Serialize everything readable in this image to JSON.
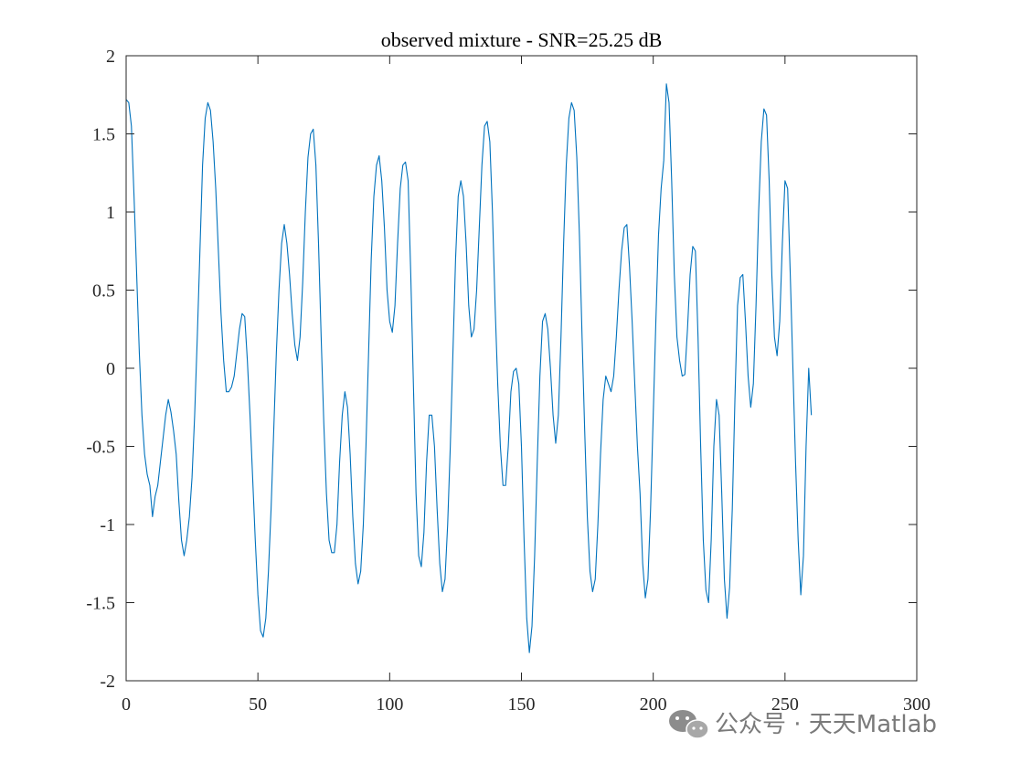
{
  "chart_data": {
    "type": "line",
    "title": "observed mixture - SNR=25.25 dB",
    "xlabel": "",
    "ylabel": "",
    "xlim": [
      0,
      300
    ],
    "ylim": [
      -2,
      2
    ],
    "xticks": [
      0,
      50,
      100,
      150,
      200,
      250,
      300
    ],
    "xtick_labels": [
      "0",
      "50",
      "100",
      "150",
      "200",
      "250",
      "300"
    ],
    "yticks": [
      -2,
      -1.5,
      -1,
      -0.5,
      0,
      0.5,
      1,
      1.5,
      2
    ],
    "ytick_labels": [
      "-2",
      "-1.5",
      "-1",
      "-0.5",
      "0",
      "0.5",
      "1",
      "1.5",
      "2"
    ],
    "grid": false,
    "line_color": "#0072BD",
    "series": [
      {
        "points": [
          [
            0,
            1.72
          ],
          [
            1,
            1.7
          ],
          [
            2,
            1.55
          ],
          [
            3,
            1.1
          ],
          [
            4,
            0.6
          ],
          [
            5,
            0.1
          ],
          [
            6,
            -0.3
          ],
          [
            7,
            -0.55
          ],
          [
            8,
            -0.68
          ],
          [
            9,
            -0.75
          ],
          [
            10,
            -0.95
          ],
          [
            11,
            -0.82
          ],
          [
            12,
            -0.75
          ],
          [
            13,
            -0.6
          ],
          [
            14,
            -0.45
          ],
          [
            15,
            -0.3
          ],
          [
            16,
            -0.2
          ],
          [
            17,
            -0.28
          ],
          [
            18,
            -0.4
          ],
          [
            19,
            -0.55
          ],
          [
            20,
            -0.85
          ],
          [
            21,
            -1.1
          ],
          [
            22,
            -1.2
          ],
          [
            23,
            -1.1
          ],
          [
            24,
            -0.95
          ],
          [
            25,
            -0.7
          ],
          [
            26,
            -0.3
          ],
          [
            27,
            0.2
          ],
          [
            28,
            0.75
          ],
          [
            29,
            1.3
          ],
          [
            30,
            1.6
          ],
          [
            31,
            1.7
          ],
          [
            32,
            1.65
          ],
          [
            33,
            1.45
          ],
          [
            34,
            1.15
          ],
          [
            35,
            0.75
          ],
          [
            36,
            0.35
          ],
          [
            37,
            0.05
          ],
          [
            38,
            -0.15
          ],
          [
            39,
            -0.15
          ],
          [
            40,
            -0.12
          ],
          [
            41,
            -0.05
          ],
          [
            42,
            0.1
          ],
          [
            43,
            0.25
          ],
          [
            44,
            0.35
          ],
          [
            45,
            0.33
          ],
          [
            46,
            0.05
          ],
          [
            47,
            -0.3
          ],
          [
            48,
            -0.7
          ],
          [
            49,
            -1.1
          ],
          [
            50,
            -1.45
          ],
          [
            51,
            -1.68
          ],
          [
            52,
            -1.72
          ],
          [
            53,
            -1.6
          ],
          [
            54,
            -1.3
          ],
          [
            55,
            -0.9
          ],
          [
            56,
            -0.4
          ],
          [
            57,
            0.1
          ],
          [
            58,
            0.5
          ],
          [
            59,
            0.8
          ],
          [
            60,
            0.92
          ],
          [
            61,
            0.8
          ],
          [
            62,
            0.6
          ],
          [
            63,
            0.35
          ],
          [
            64,
            0.15
          ],
          [
            65,
            0.05
          ],
          [
            66,
            0.2
          ],
          [
            67,
            0.55
          ],
          [
            68,
            1.0
          ],
          [
            69,
            1.35
          ],
          [
            70,
            1.5
          ],
          [
            71,
            1.53
          ],
          [
            72,
            1.3
          ],
          [
            73,
            0.8
          ],
          [
            74,
            0.2
          ],
          [
            75,
            -0.35
          ],
          [
            76,
            -0.8
          ],
          [
            77,
            -1.1
          ],
          [
            78,
            -1.18
          ],
          [
            79,
            -1.18
          ],
          [
            80,
            -1.0
          ],
          [
            81,
            -0.6
          ],
          [
            82,
            -0.3
          ],
          [
            83,
            -0.15
          ],
          [
            84,
            -0.25
          ],
          [
            85,
            -0.55
          ],
          [
            86,
            -0.95
          ],
          [
            87,
            -1.25
          ],
          [
            88,
            -1.38
          ],
          [
            89,
            -1.3
          ],
          [
            90,
            -1.0
          ],
          [
            91,
            -0.5
          ],
          [
            92,
            0.1
          ],
          [
            93,
            0.7
          ],
          [
            94,
            1.1
          ],
          [
            95,
            1.3
          ],
          [
            96,
            1.36
          ],
          [
            97,
            1.2
          ],
          [
            98,
            0.9
          ],
          [
            99,
            0.5
          ],
          [
            100,
            0.3
          ],
          [
            101,
            0.23
          ],
          [
            102,
            0.4
          ],
          [
            103,
            0.8
          ],
          [
            104,
            1.15
          ],
          [
            105,
            1.3
          ],
          [
            106,
            1.32
          ],
          [
            107,
            1.2
          ],
          [
            108,
            0.6
          ],
          [
            109,
            -0.1
          ],
          [
            110,
            -0.8
          ],
          [
            111,
            -1.2
          ],
          [
            112,
            -1.27
          ],
          [
            113,
            -1.05
          ],
          [
            114,
            -0.6
          ],
          [
            115,
            -0.3
          ],
          [
            116,
            -0.3
          ],
          [
            117,
            -0.5
          ],
          [
            118,
            -0.9
          ],
          [
            119,
            -1.25
          ],
          [
            120,
            -1.43
          ],
          [
            121,
            -1.35
          ],
          [
            122,
            -1.0
          ],
          [
            123,
            -0.5
          ],
          [
            124,
            0.1
          ],
          [
            125,
            0.7
          ],
          [
            126,
            1.1
          ],
          [
            127,
            1.2
          ],
          [
            128,
            1.1
          ],
          [
            129,
            0.8
          ],
          [
            130,
            0.4
          ],
          [
            131,
            0.2
          ],
          [
            132,
            0.25
          ],
          [
            133,
            0.5
          ],
          [
            134,
            0.9
          ],
          [
            135,
            1.3
          ],
          [
            136,
            1.55
          ],
          [
            137,
            1.58
          ],
          [
            138,
            1.45
          ],
          [
            139,
            1.0
          ],
          [
            140,
            0.4
          ],
          [
            141,
            -0.1
          ],
          [
            142,
            -0.5
          ],
          [
            143,
            -0.75
          ],
          [
            144,
            -0.75
          ],
          [
            145,
            -0.5
          ],
          [
            146,
            -0.15
          ],
          [
            147,
            -0.02
          ],
          [
            148,
            0.0
          ],
          [
            149,
            -0.1
          ],
          [
            150,
            -0.5
          ],
          [
            151,
            -1.1
          ],
          [
            152,
            -1.6
          ],
          [
            153,
            -1.82
          ],
          [
            154,
            -1.65
          ],
          [
            155,
            -1.2
          ],
          [
            156,
            -0.6
          ],
          [
            157,
            -0.05
          ],
          [
            158,
            0.3
          ],
          [
            159,
            0.35
          ],
          [
            160,
            0.25
          ],
          [
            161,
            0.0
          ],
          [
            162,
            -0.3
          ],
          [
            163,
            -0.48
          ],
          [
            164,
            -0.3
          ],
          [
            165,
            0.2
          ],
          [
            166,
            0.8
          ],
          [
            167,
            1.3
          ],
          [
            168,
            1.6
          ],
          [
            169,
            1.7
          ],
          [
            170,
            1.65
          ],
          [
            171,
            1.35
          ],
          [
            172,
            0.85
          ],
          [
            173,
            0.2
          ],
          [
            174,
            -0.4
          ],
          [
            175,
            -0.95
          ],
          [
            176,
            -1.3
          ],
          [
            177,
            -1.43
          ],
          [
            178,
            -1.35
          ],
          [
            179,
            -1.0
          ],
          [
            180,
            -0.55
          ],
          [
            181,
            -0.2
          ],
          [
            182,
            -0.05
          ],
          [
            183,
            -0.1
          ],
          [
            184,
            -0.15
          ],
          [
            185,
            -0.05
          ],
          [
            186,
            0.2
          ],
          [
            187,
            0.5
          ],
          [
            188,
            0.75
          ],
          [
            189,
            0.9
          ],
          [
            190,
            0.92
          ],
          [
            191,
            0.65
          ],
          [
            192,
            0.3
          ],
          [
            193,
            -0.1
          ],
          [
            194,
            -0.5
          ],
          [
            195,
            -0.8
          ],
          [
            196,
            -1.25
          ],
          [
            197,
            -1.47
          ],
          [
            198,
            -1.35
          ],
          [
            199,
            -0.9
          ],
          [
            200,
            -0.3
          ],
          [
            201,
            0.3
          ],
          [
            202,
            0.85
          ],
          [
            203,
            1.15
          ],
          [
            204,
            1.33
          ],
          [
            205,
            1.82
          ],
          [
            206,
            1.7
          ],
          [
            207,
            1.2
          ],
          [
            208,
            0.6
          ],
          [
            209,
            0.2
          ],
          [
            210,
            0.05
          ],
          [
            211,
            -0.05
          ],
          [
            212,
            -0.04
          ],
          [
            213,
            0.25
          ],
          [
            214,
            0.6
          ],
          [
            215,
            0.78
          ],
          [
            216,
            0.75
          ],
          [
            217,
            0.2
          ],
          [
            218,
            -0.5
          ],
          [
            219,
            -1.1
          ],
          [
            220,
            -1.42
          ],
          [
            221,
            -1.5
          ],
          [
            222,
            -1.1
          ],
          [
            223,
            -0.5
          ],
          [
            224,
            -0.2
          ],
          [
            225,
            -0.3
          ],
          [
            226,
            -0.8
          ],
          [
            227,
            -1.35
          ],
          [
            228,
            -1.6
          ],
          [
            229,
            -1.4
          ],
          [
            230,
            -0.9
          ],
          [
            231,
            -0.2
          ],
          [
            232,
            0.4
          ],
          [
            233,
            0.58
          ],
          [
            234,
            0.6
          ],
          [
            235,
            0.3
          ],
          [
            236,
            -0.05
          ],
          [
            237,
            -0.25
          ],
          [
            238,
            -0.1
          ],
          [
            239,
            0.4
          ],
          [
            240,
            1.0
          ],
          [
            241,
            1.45
          ],
          [
            242,
            1.66
          ],
          [
            243,
            1.62
          ],
          [
            244,
            1.2
          ],
          [
            245,
            0.6
          ],
          [
            246,
            0.2
          ],
          [
            247,
            0.08
          ],
          [
            248,
            0.3
          ],
          [
            249,
            0.8
          ],
          [
            250,
            1.2
          ],
          [
            251,
            1.15
          ],
          [
            252,
            0.6
          ],
          [
            253,
            0.0
          ],
          [
            254,
            -0.6
          ],
          [
            255,
            -1.1
          ],
          [
            256,
            -1.45
          ],
          [
            257,
            -1.2
          ],
          [
            258,
            -0.5
          ],
          [
            259,
            0.0
          ],
          [
            260,
            -0.3
          ]
        ]
      }
    ]
  },
  "watermark": {
    "icon": "wechat-icon",
    "text": "公众号 · 天天Matlab",
    "color": "#7a7a7a"
  }
}
